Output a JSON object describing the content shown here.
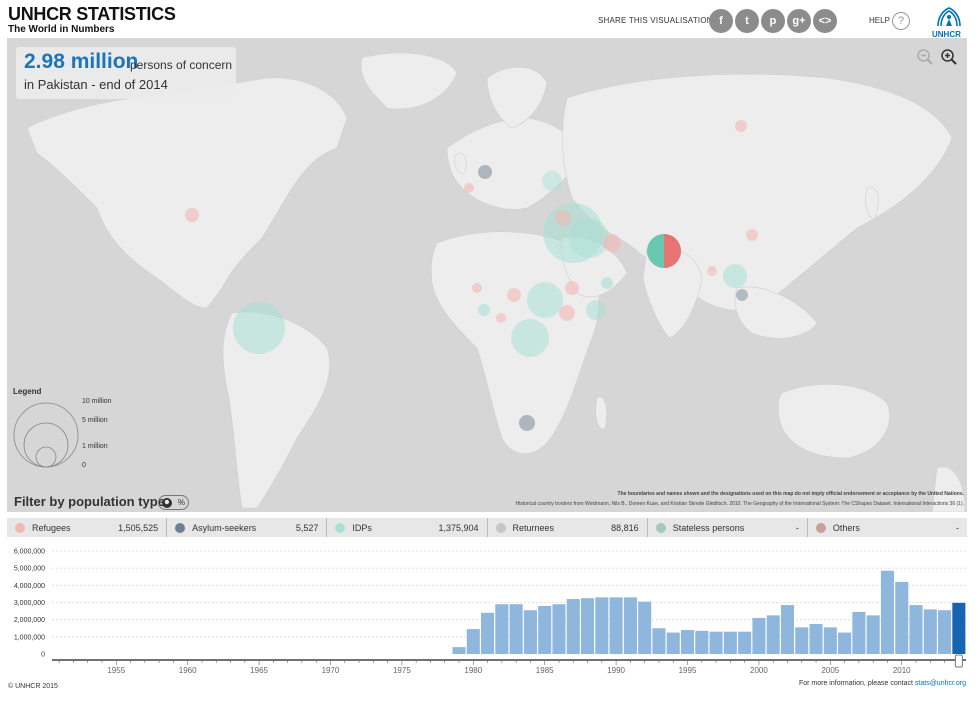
{
  "header": {
    "title": "UNHCR STATISTICS",
    "subtitle": "The World in Numbers",
    "share_label": "SHARE THIS VISUALISATION",
    "share_buttons": [
      {
        "icon": "facebook-icon",
        "glyph": "f"
      },
      {
        "icon": "twitter-icon",
        "glyph": "t"
      },
      {
        "icon": "pinterest-icon",
        "glyph": "p"
      },
      {
        "icon": "googleplus-icon",
        "glyph": "g+"
      },
      {
        "icon": "embed-icon",
        "glyph": "<>"
      }
    ],
    "help_label": "HELP",
    "help_glyph": "?",
    "logo_text": "UNHCR"
  },
  "headline": {
    "value": "2.98 million",
    "unit": "persons of concern",
    "place": "in Pakistan - end of 2014"
  },
  "zoom": {
    "out_icon": "zoom-out-icon",
    "in_icon": "zoom-in-icon"
  },
  "legend": {
    "title": "Legend",
    "labels": [
      "10 million",
      "5 million",
      "1 million",
      "0"
    ]
  },
  "credits": {
    "line1": "The boundaries and names shown and the designations used on this map do not imply official endorsement or acceptance by the United Nations.",
    "line2": "Historical country borders from Weidmann, Nils B., Doreen Kuse, and Kristian Skrede Gleditsch. 2010. The Geography of the International System: The CShapes Dataset. International Interactions 36 (1)."
  },
  "filter": {
    "title": "Filter by population type",
    "toggle_percent": "%",
    "items": [
      {
        "label": "Refugees",
        "value": "1,505,525",
        "color": "#f2b8b3"
      },
      {
        "label": "Asylum-seekers",
        "value": "5,527",
        "color": "#6d7f91"
      },
      {
        "label": "IDPs",
        "value": "1,375,904",
        "color": "#a8e0d5"
      },
      {
        "label": "Returnees",
        "value": "88,816",
        "color": "#c6c6c6"
      },
      {
        "label": "Stateless persons",
        "value": "-",
        "color": "#a6c9bd"
      },
      {
        "label": "Others",
        "value": "-",
        "color": "#c9a09a"
      }
    ]
  },
  "colors": {
    "map_bg": "#d6d6d6",
    "land": "#ededed",
    "bar": "#8fb6dd",
    "bar_selected": "#1565b0",
    "accent": "#1b75bb"
  },
  "chart_data": {
    "type": "bar",
    "ylim": [
      0,
      6000000
    ],
    "y_ticks": [
      "0",
      "1,000,000",
      "2,000,000",
      "3,000,000",
      "4,000,000",
      "5,000,000",
      "6,000,000"
    ],
    "x_ticks": [
      "1955",
      "1960",
      "1965",
      "1970",
      "1975",
      "1980",
      "1985",
      "1990",
      "1995",
      "2000",
      "2005",
      "2010"
    ],
    "x_range": [
      1951,
      2014
    ],
    "selected_year": 2014,
    "categories": [
      1979,
      1980,
      1981,
      1982,
      1983,
      1984,
      1985,
      1986,
      1987,
      1988,
      1989,
      1990,
      1991,
      1992,
      1993,
      1994,
      1995,
      1996,
      1997,
      1998,
      1999,
      2000,
      2001,
      2002,
      2003,
      2004,
      2005,
      2006,
      2007,
      2008,
      2009,
      2010,
      2011,
      2012,
      2013,
      2014
    ],
    "values": [
      400000,
      1450000,
      2400000,
      2900000,
      2900000,
      2550000,
      2800000,
      2900000,
      3200000,
      3250000,
      3300000,
      3300000,
      3300000,
      3050000,
      1500000,
      1250000,
      1400000,
      1350000,
      1300000,
      1300000,
      1300000,
      2100000,
      2250000,
      2850000,
      1550000,
      1750000,
      1550000,
      1250000,
      2450000,
      2250000,
      4850000,
      4200000,
      2850000,
      2600000,
      2550000,
      2980000
    ]
  },
  "footer": {
    "copyright": "© UNHCR  2015",
    "contact_text": "For more information, please contact",
    "contact_email": "stats@unhcr.org"
  }
}
